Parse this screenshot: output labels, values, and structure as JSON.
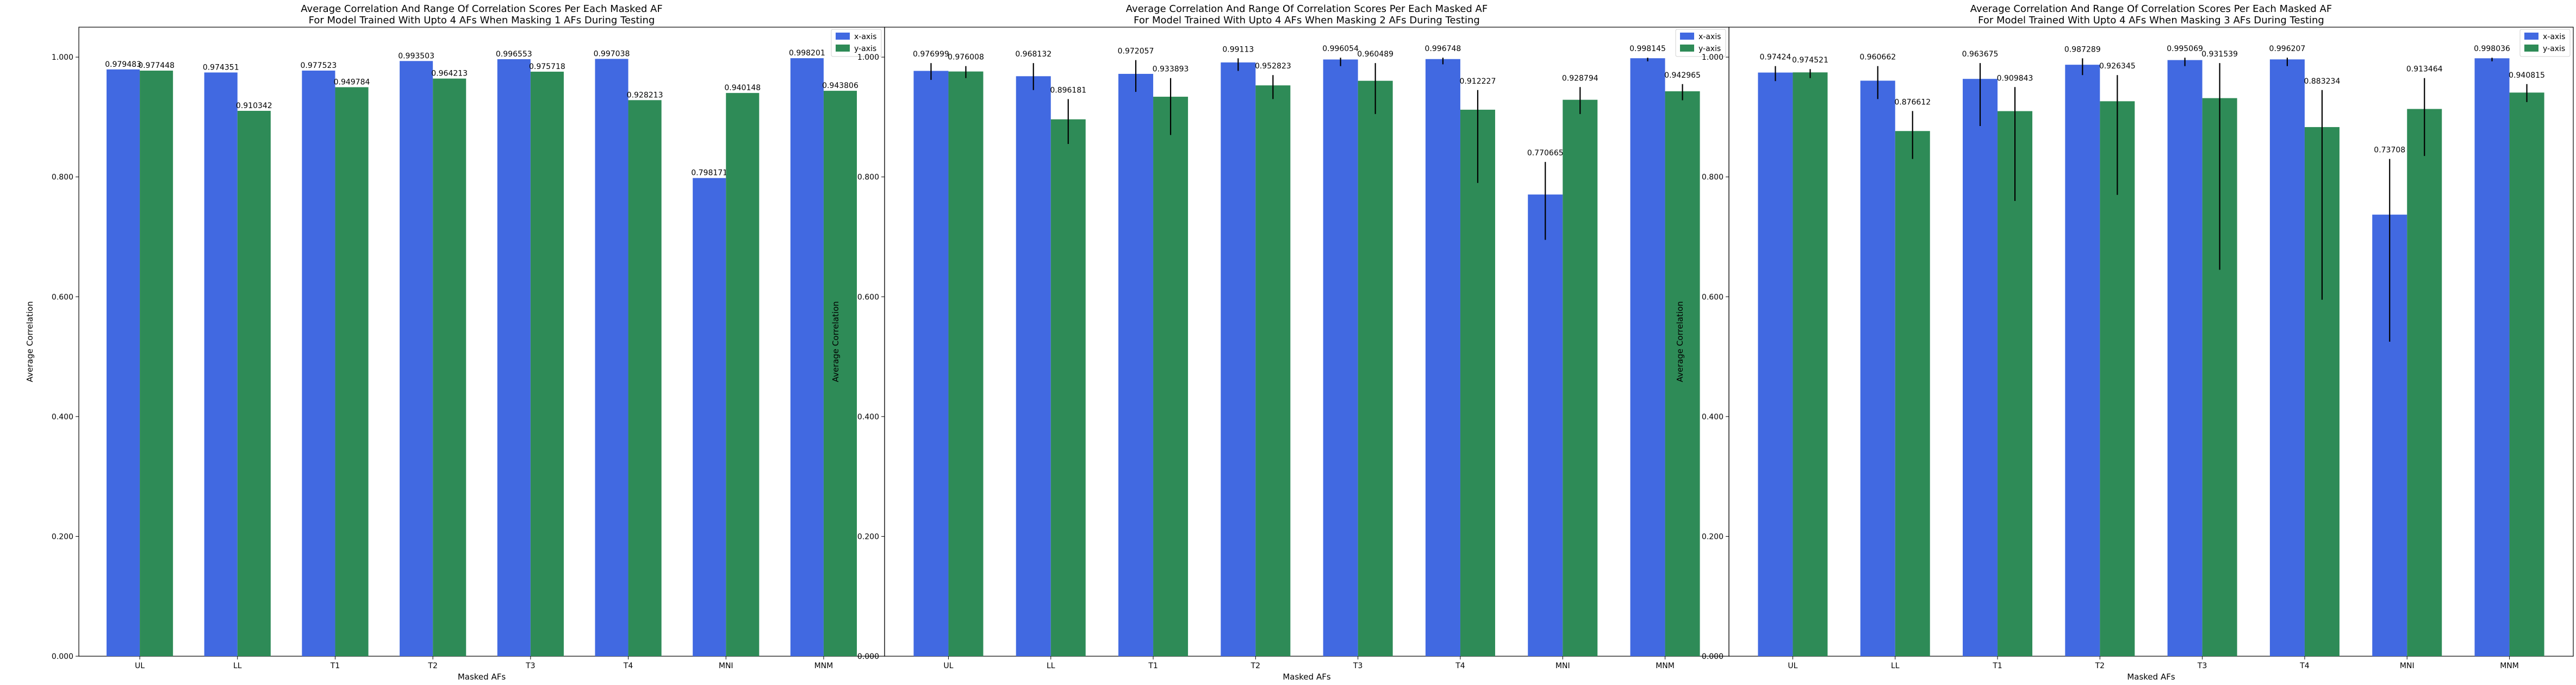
{
  "chart_data": [
    {
      "type": "bar",
      "title": "Average Correlation And Range Of Correlation Scores Per Each Masked AF",
      "subtitle": "For Model Trained With Upto 4 AFs When Masking 1 AFs During Testing",
      "xlabel": "Masked AFs",
      "ylabel": "Average Correlation",
      "ylim": [
        0,
        1.05
      ],
      "yticks": [
        "0.000",
        "0.200",
        "0.400",
        "0.600",
        "0.800",
        "1.000"
      ],
      "categories": [
        "UL",
        "LL",
        "T1",
        "T2",
        "T3",
        "T4",
        "MNI",
        "MNM"
      ],
      "series": [
        {
          "name": "x-axis",
          "color": "#4169e1",
          "values": [
            0.979483,
            0.974351,
            0.977523,
            0.993503,
            0.996553,
            0.997038,
            0.798171,
            0.998201
          ],
          "labels": [
            "0.979483",
            "0.974351",
            "0.977523",
            "0.993503",
            "0.996553",
            "0.997038",
            "0.798171",
            "0.998201"
          ],
          "err_low": [
            null,
            null,
            null,
            null,
            null,
            null,
            null,
            null
          ],
          "err_high": [
            null,
            null,
            null,
            null,
            null,
            null,
            null,
            null
          ]
        },
        {
          "name": "y-axis",
          "color": "#2e8b57",
          "values": [
            0.977448,
            0.910342,
            0.949784,
            0.964213,
            0.975718,
            0.928213,
            0.940148,
            0.943806
          ],
          "labels": [
            "0.977448",
            "0.910342",
            "0.949784",
            "0.964213",
            "0.975718",
            "0.928213",
            "0.940148",
            "0.943806"
          ],
          "err_low": [
            null,
            null,
            null,
            null,
            null,
            null,
            null,
            null
          ],
          "err_high": [
            null,
            null,
            null,
            null,
            null,
            null,
            null,
            null
          ]
        }
      ],
      "legend": "top-right",
      "grid": false
    },
    {
      "type": "bar",
      "title": "Average Correlation And Range Of Correlation Scores Per Each Masked AF",
      "subtitle": "For Model Trained With Upto 4 AFs When Masking 2 AFs During Testing",
      "xlabel": "Masked AFs",
      "ylabel": "Average Correlation",
      "ylim": [
        0,
        1.05
      ],
      "yticks": [
        "0.000",
        "0.200",
        "0.400",
        "0.600",
        "0.800",
        "1.000"
      ],
      "categories": [
        "UL",
        "LL",
        "T1",
        "T2",
        "T3",
        "T4",
        "MNI",
        "MNM"
      ],
      "series": [
        {
          "name": "x-axis",
          "color": "#4169e1",
          "values": [
            0.976999,
            0.968132,
            0.972057,
            0.99113,
            0.996054,
            0.996748,
            0.770665,
            0.998145
          ],
          "labels": [
            "0.976999",
            "0.968132",
            "0.972057",
            "0.99113",
            "0.996054",
            "0.996748",
            "0.770665",
            "0.998145"
          ],
          "err_low": [
            0.962,
            0.945,
            0.942,
            0.977,
            0.985,
            0.988,
            0.695,
            0.993
          ],
          "err_high": [
            0.99,
            0.99,
            0.995,
            0.998,
            0.999,
            0.999,
            0.825,
            0.999
          ]
        },
        {
          "name": "y-axis",
          "color": "#2e8b57",
          "values": [
            0.976008,
            0.896181,
            0.933893,
            0.952823,
            0.960489,
            0.912227,
            0.928794,
            0.942965
          ],
          "labels": [
            "0.976008",
            "0.896181",
            "0.933893",
            "0.952823",
            "0.960489",
            "0.912227",
            "0.928794",
            "0.942965"
          ],
          "err_low": [
            0.965,
            0.855,
            0.87,
            0.93,
            0.905,
            0.79,
            0.905,
            0.928
          ],
          "err_high": [
            0.985,
            0.93,
            0.965,
            0.97,
            0.99,
            0.945,
            0.95,
            0.955
          ]
        }
      ],
      "legend": "top-right",
      "grid": false
    },
    {
      "type": "bar",
      "title": "Average Correlation And Range Of Correlation Scores Per Each Masked AF",
      "subtitle": "For Model Trained With Upto 4 AFs When Masking 3 AFs During Testing",
      "xlabel": "Masked AFs",
      "ylabel": "Average Correlation",
      "ylim": [
        0,
        1.05
      ],
      "yticks": [
        "0.000",
        "0.200",
        "0.400",
        "0.600",
        "0.800",
        "1.000"
      ],
      "categories": [
        "UL",
        "LL",
        "T1",
        "T2",
        "T3",
        "T4",
        "MNI",
        "MNM"
      ],
      "series": [
        {
          "name": "x-axis",
          "color": "#4169e1",
          "values": [
            0.97424,
            0.960662,
            0.963675,
            0.987289,
            0.995069,
            0.996207,
            0.73708,
            0.998036
          ],
          "labels": [
            "0.97424",
            "0.960662",
            "0.963675",
            "0.987289",
            "0.995069",
            "0.996207",
            "0.73708",
            "0.998036"
          ],
          "err_low": [
            0.96,
            0.93,
            0.885,
            0.97,
            0.985,
            0.985,
            0.525,
            0.993
          ],
          "err_high": [
            0.985,
            0.985,
            0.99,
            0.998,
            0.999,
            0.999,
            0.83,
            0.999
          ]
        },
        {
          "name": "y-axis",
          "color": "#2e8b57",
          "values": [
            0.974521,
            0.876612,
            0.909843,
            0.926345,
            0.931539,
            0.883234,
            0.913464,
            0.940815
          ],
          "labels": [
            "0.974521",
            "0.876612",
            "0.909843",
            "0.926345",
            "0.931539",
            "0.883234",
            "0.913464",
            "0.940815"
          ],
          "err_low": [
            0.965,
            0.83,
            0.76,
            0.77,
            0.645,
            0.595,
            0.835,
            0.925
          ],
          "err_high": [
            0.98,
            0.91,
            0.95,
            0.97,
            0.99,
            0.945,
            0.965,
            0.955
          ]
        }
      ],
      "legend": "top-right",
      "grid": false
    }
  ]
}
